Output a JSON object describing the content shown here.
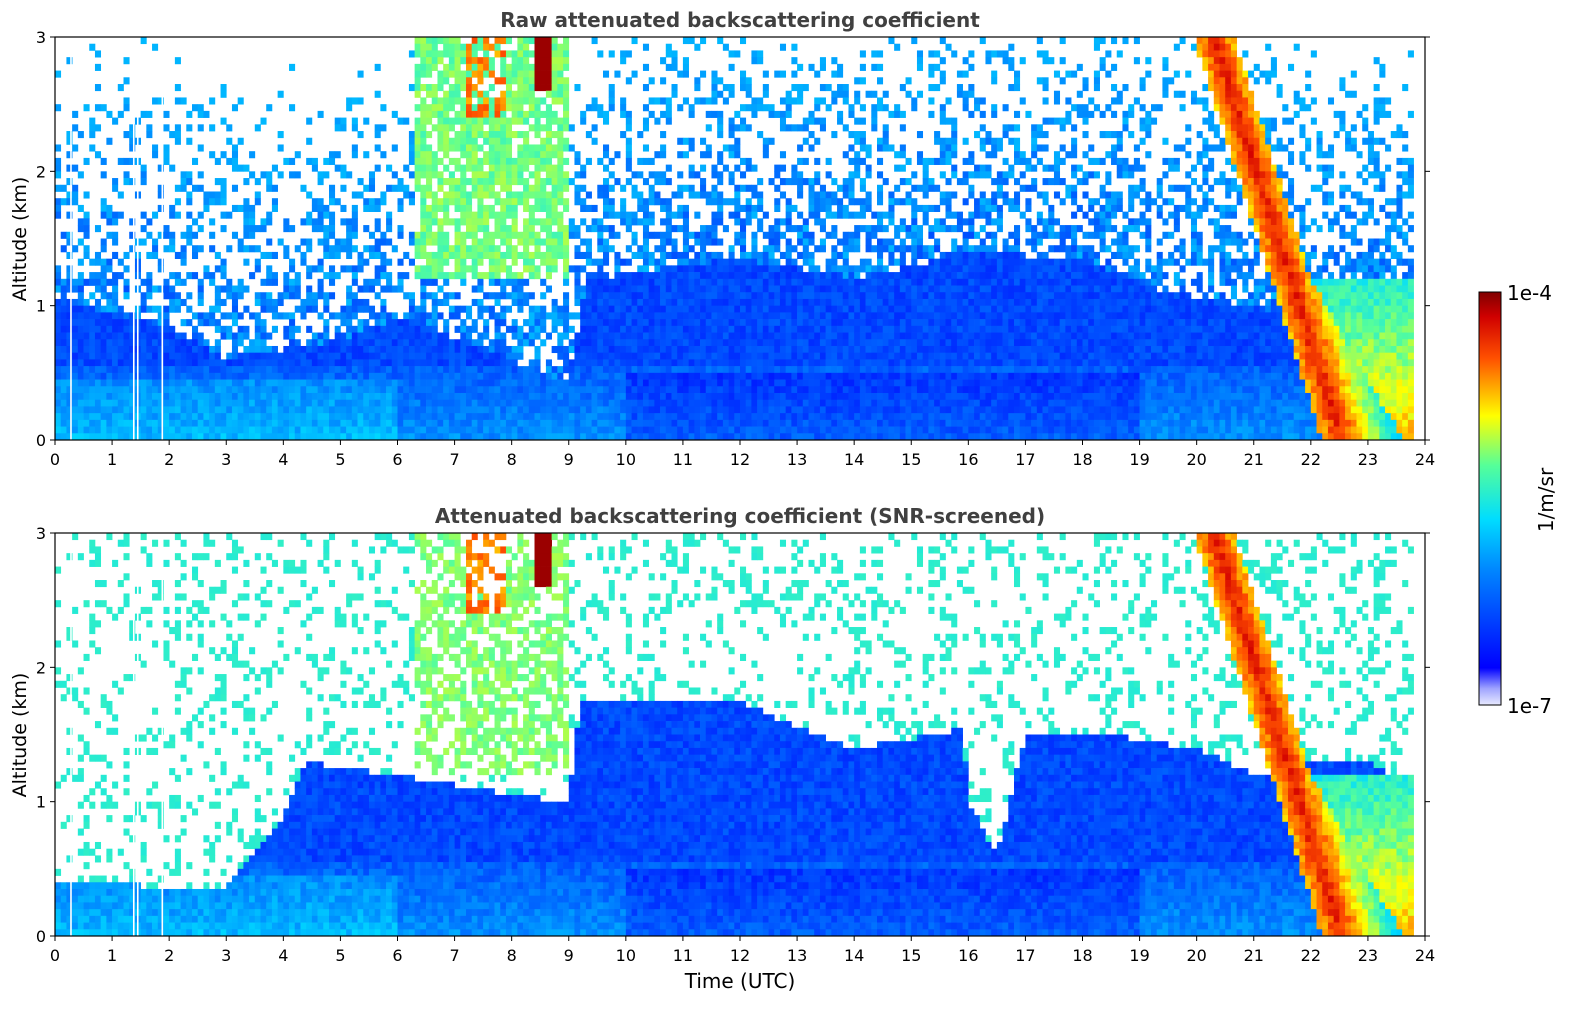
{
  "chart_data": [
    {
      "type": "heatmap",
      "title": "Raw attenuated backscattering coefficient",
      "xlabel": "",
      "ylabel": "Altitude (km)",
      "xlim": [
        0,
        24
      ],
      "ylim": [
        0,
        3
      ],
      "xticks": [
        "0",
        "1",
        "2",
        "3",
        "4",
        "5",
        "6",
        "7",
        "8",
        "9",
        "10",
        "11",
        "12",
        "13",
        "14",
        "15",
        "16",
        "17",
        "18",
        "19",
        "20",
        "21",
        "22",
        "23",
        "24"
      ],
      "yticks": [
        "0",
        "1",
        "2",
        "3"
      ],
      "screened": false
    },
    {
      "type": "heatmap",
      "title": "Attenuated backscattering coefficient (SNR-screened)",
      "xlabel": "Time (UTC)",
      "ylabel": "Altitude (km)",
      "xlim": [
        0,
        24
      ],
      "ylim": [
        0,
        3
      ],
      "xticks": [
        "0",
        "1",
        "2",
        "3",
        "4",
        "5",
        "6",
        "7",
        "8",
        "9",
        "10",
        "11",
        "12",
        "13",
        "14",
        "15",
        "16",
        "17",
        "18",
        "19",
        "20",
        "21",
        "22",
        "23",
        "24"
      ],
      "yticks": [
        "0",
        "1",
        "2",
        "3"
      ],
      "screened": true
    }
  ],
  "colorbar": {
    "label": "1/m/sr",
    "max_label": "1e-4",
    "min_label": "1e-7",
    "log_range": [
      -7,
      -4
    ]
  },
  "colors": {
    "low": "#0000ff",
    "mid": "#00ddff",
    "high": "#ff0000",
    "max": "#800000"
  }
}
